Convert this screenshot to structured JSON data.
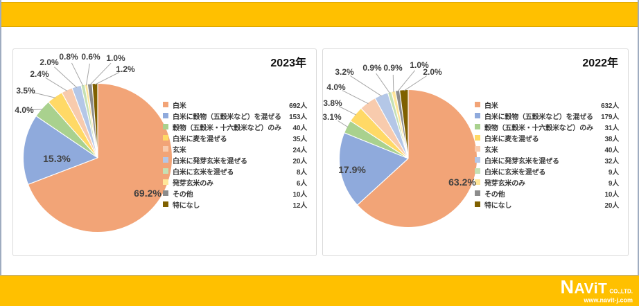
{
  "page": {
    "brand_color": "#FFC000",
    "frame_color": "#9FACC0"
  },
  "footer": {
    "logo_name": "NAViT",
    "logo_suffix": "CO.,LTD.",
    "logo_url": "www.navit-j.com"
  },
  "chart_data": [
    {
      "type": "pie",
      "title": "2023年",
      "unit": "人",
      "legend_position": "right",
      "slices": [
        {
          "label": "白米",
          "value": 692,
          "count_label": "692人",
          "pct": 69.2,
          "pct_label": "69.2%",
          "color": "#F2A477"
        },
        {
          "label": "白米に穀物（五穀米など）を混ぜる",
          "value": 153,
          "count_label": "153人",
          "pct": 15.3,
          "pct_label": "15.3%",
          "color": "#8FAADC"
        },
        {
          "label": "穀物（五穀米・十六穀米など）のみ",
          "value": 40,
          "count_label": "40人",
          "pct": 4.0,
          "pct_label": "4.0%",
          "color": "#A9D18E"
        },
        {
          "label": "白米に麦を混ぜる",
          "value": 35,
          "count_label": "35人",
          "pct": 3.5,
          "pct_label": "3.5%",
          "color": "#FFD966"
        },
        {
          "label": "玄米",
          "value": 24,
          "count_label": "24人",
          "pct": 2.4,
          "pct_label": "2.4%",
          "color": "#F8CBAD"
        },
        {
          "label": "白米に発芽玄米を混ぜる",
          "value": 20,
          "count_label": "20人",
          "pct": 2.0,
          "pct_label": "2.0%",
          "color": "#B4C7E7"
        },
        {
          "label": "白米に玄米を混ぜる",
          "value": 8,
          "count_label": "8人",
          "pct": 0.8,
          "pct_label": "0.8%",
          "color": "#C5E0B4"
        },
        {
          "label": "発芽玄米のみ",
          "value": 6,
          "count_label": "6人",
          "pct": 0.6,
          "pct_label": "0.6%",
          "color": "#FFE699"
        },
        {
          "label": "その他",
          "value": 10,
          "count_label": "10人",
          "pct": 1.0,
          "pct_label": "1.0%",
          "color": "#8C8C8C"
        },
        {
          "label": "特になし",
          "value": 12,
          "count_label": "12人",
          "pct": 1.2,
          "pct_label": "1.2%",
          "color": "#7F6000"
        }
      ]
    },
    {
      "type": "pie",
      "title": "2022年",
      "unit": "人",
      "legend_position": "right",
      "slices": [
        {
          "label": "白米",
          "value": 632,
          "count_label": "632人",
          "pct": 63.2,
          "pct_label": "63.2%",
          "color": "#F2A477"
        },
        {
          "label": "白米に穀物（五穀米など）を混ぜる",
          "value": 179,
          "count_label": "179人",
          "pct": 17.9,
          "pct_label": "17.9%",
          "color": "#8FAADC"
        },
        {
          "label": "穀物（五穀米・十六穀米など）のみ",
          "value": 31,
          "count_label": "31人",
          "pct": 3.1,
          "pct_label": "3.1%",
          "color": "#A9D18E"
        },
        {
          "label": "白米に麦を混ぜる",
          "value": 38,
          "count_label": "38人",
          "pct": 3.8,
          "pct_label": "3.8%",
          "color": "#FFD966"
        },
        {
          "label": "玄米",
          "value": 40,
          "count_label": "40人",
          "pct": 4.0,
          "pct_label": "4.0%",
          "color": "#F8CBAD"
        },
        {
          "label": "白米に発芽玄米を混ぜる",
          "value": 32,
          "count_label": "32人",
          "pct": 3.2,
          "pct_label": "3.2%",
          "color": "#B4C7E7"
        },
        {
          "label": "白米に玄米を混ぜる",
          "value": 9,
          "count_label": "9人",
          "pct": 0.9,
          "pct_label": "0.9%",
          "color": "#C5E0B4"
        },
        {
          "label": "発芽玄米のみ",
          "value": 9,
          "count_label": "9人",
          "pct": 0.9,
          "pct_label": "0.9%",
          "color": "#FFE699"
        },
        {
          "label": "その他",
          "value": 10,
          "count_label": "10人",
          "pct": 1.0,
          "pct_label": "1.0%",
          "color": "#8C8C8C"
        },
        {
          "label": "特になし",
          "value": 20,
          "count_label": "20人",
          "pct": 2.0,
          "pct_label": "2.0%",
          "color": "#7F6000"
        }
      ]
    }
  ]
}
